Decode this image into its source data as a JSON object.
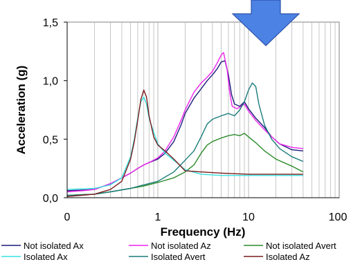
{
  "chart_data": {
    "type": "line",
    "xlabel": "Frequency (Hz)",
    "ylabel": "Acceleration (g)",
    "x_scale": "log",
    "xlim": [
      0.1,
      100
    ],
    "ylim": [
      0,
      1.5
    ],
    "x_tick_labels": [
      "0",
      "1",
      "10",
      "100"
    ],
    "y_tick_labels": [
      "0,0",
      "0,5",
      "1,0",
      "1,5"
    ],
    "grid": "vertical log minor and major gridlines",
    "legend_position": "bottom",
    "annotation": "downward-pointing blue arrow at top right",
    "colors": {
      "arrow_fill": "#4b82e4",
      "arrow_stroke": "#2a4fa8",
      "plot_background": "#ffffff",
      "grid": "#b8b8b8"
    },
    "series": [
      {
        "name": "Not isolated Ax",
        "color": "#1a1a7a",
        "points": [
          [
            0.1,
            0.06
          ],
          [
            0.15,
            0.065
          ],
          [
            0.2,
            0.07
          ],
          [
            0.3,
            0.12
          ],
          [
            0.4,
            0.17
          ],
          [
            0.5,
            0.21
          ],
          [
            0.6,
            0.25
          ],
          [
            0.7,
            0.28
          ],
          [
            0.8,
            0.3
          ],
          [
            1.0,
            0.33
          ],
          [
            1.2,
            0.38
          ],
          [
            1.5,
            0.48
          ],
          [
            1.8,
            0.62
          ],
          [
            2.0,
            0.72
          ],
          [
            2.5,
            0.85
          ],
          [
            3.0,
            0.93
          ],
          [
            3.5,
            1.0
          ],
          [
            4.0,
            1.05
          ],
          [
            4.5,
            1.1
          ],
          [
            5.0,
            1.16
          ],
          [
            5.5,
            1.17
          ],
          [
            6.0,
            1.05
          ],
          [
            6.5,
            0.88
          ],
          [
            7.0,
            0.8
          ],
          [
            8.0,
            0.78
          ],
          [
            9.0,
            0.82
          ],
          [
            10.0,
            0.76
          ],
          [
            12.0,
            0.68
          ],
          [
            15.0,
            0.6
          ],
          [
            18.0,
            0.52
          ],
          [
            22.0,
            0.46
          ],
          [
            30.0,
            0.41
          ],
          [
            40.0,
            0.4
          ]
        ]
      },
      {
        "name": "Not isolated Az",
        "color": "#ee22ee",
        "points": [
          [
            0.1,
            0.05
          ],
          [
            0.15,
            0.06
          ],
          [
            0.2,
            0.07
          ],
          [
            0.3,
            0.12
          ],
          [
            0.4,
            0.17
          ],
          [
            0.5,
            0.21
          ],
          [
            0.6,
            0.25
          ],
          [
            0.7,
            0.28
          ],
          [
            0.8,
            0.3
          ],
          [
            1.0,
            0.34
          ],
          [
            1.2,
            0.4
          ],
          [
            1.5,
            0.52
          ],
          [
            1.8,
            0.66
          ],
          [
            2.0,
            0.75
          ],
          [
            2.5,
            0.9
          ],
          [
            3.0,
            0.98
          ],
          [
            3.5,
            1.03
          ],
          [
            4.0,
            1.08
          ],
          [
            4.5,
            1.15
          ],
          [
            5.0,
            1.22
          ],
          [
            5.3,
            1.24
          ],
          [
            5.8,
            1.1
          ],
          [
            6.2,
            0.9
          ],
          [
            6.6,
            0.78
          ],
          [
            7.5,
            0.76
          ],
          [
            9.0,
            0.8
          ],
          [
            10.0,
            0.74
          ],
          [
            12.0,
            0.66
          ],
          [
            15.0,
            0.58
          ],
          [
            18.0,
            0.52
          ],
          [
            22.0,
            0.46
          ],
          [
            30.0,
            0.43
          ],
          [
            40.0,
            0.42
          ]
        ]
      },
      {
        "name": "Not isolated Avert",
        "color": "#2a8a2a",
        "points": [
          [
            0.1,
            0.02
          ],
          [
            0.2,
            0.03
          ],
          [
            0.3,
            0.05
          ],
          [
            0.5,
            0.08
          ],
          [
            0.7,
            0.1
          ],
          [
            1.0,
            0.13
          ],
          [
            1.5,
            0.17
          ],
          [
            2.0,
            0.22
          ],
          [
            2.5,
            0.28
          ],
          [
            3.0,
            0.38
          ],
          [
            3.5,
            0.45
          ],
          [
            4.0,
            0.48
          ],
          [
            5.0,
            0.51
          ],
          [
            6.0,
            0.53
          ],
          [
            7.0,
            0.54
          ],
          [
            8.0,
            0.53
          ],
          [
            9.0,
            0.55
          ],
          [
            10.0,
            0.52
          ],
          [
            12.0,
            0.47
          ],
          [
            15.0,
            0.4
          ],
          [
            20.0,
            0.33
          ],
          [
            30.0,
            0.27
          ],
          [
            40.0,
            0.22
          ]
        ]
      },
      {
        "name": "Isolated Ax",
        "color": "#33e0e0",
        "points": [
          [
            0.1,
            0.07
          ],
          [
            0.2,
            0.08
          ],
          [
            0.3,
            0.11
          ],
          [
            0.4,
            0.17
          ],
          [
            0.5,
            0.35
          ],
          [
            0.55,
            0.5
          ],
          [
            0.6,
            0.68
          ],
          [
            0.65,
            0.82
          ],
          [
            0.7,
            0.86
          ],
          [
            0.75,
            0.8
          ],
          [
            0.8,
            0.68
          ],
          [
            0.9,
            0.56
          ],
          [
            1.0,
            0.46
          ],
          [
            1.2,
            0.38
          ],
          [
            1.5,
            0.32
          ],
          [
            2.0,
            0.24
          ],
          [
            3.0,
            0.2
          ],
          [
            5.0,
            0.19
          ],
          [
            10.0,
            0.19
          ],
          [
            20.0,
            0.19
          ],
          [
            40.0,
            0.19
          ]
        ]
      },
      {
        "name": "Isolated Avert",
        "color": "#1a7a7a",
        "points": [
          [
            0.1,
            0.02
          ],
          [
            0.2,
            0.03
          ],
          [
            0.3,
            0.05
          ],
          [
            0.5,
            0.08
          ],
          [
            0.7,
            0.11
          ],
          [
            1.0,
            0.14
          ],
          [
            1.5,
            0.22
          ],
          [
            2.0,
            0.32
          ],
          [
            2.5,
            0.4
          ],
          [
            3.0,
            0.52
          ],
          [
            3.5,
            0.63
          ],
          [
            4.0,
            0.67
          ],
          [
            5.0,
            0.7
          ],
          [
            6.0,
            0.72
          ],
          [
            7.0,
            0.7
          ],
          [
            8.0,
            0.75
          ],
          [
            9.0,
            0.82
          ],
          [
            10.0,
            0.92
          ],
          [
            11.0,
            0.98
          ],
          [
            12.0,
            0.95
          ],
          [
            13.0,
            0.8
          ],
          [
            15.0,
            0.62
          ],
          [
            18.0,
            0.5
          ],
          [
            22.0,
            0.42
          ],
          [
            30.0,
            0.35
          ],
          [
            40.0,
            0.31
          ]
        ]
      },
      {
        "name": "Isolated Az",
        "color": "#7a1a1a",
        "points": [
          [
            0.1,
            0.01
          ],
          [
            0.2,
            0.03
          ],
          [
            0.3,
            0.07
          ],
          [
            0.4,
            0.14
          ],
          [
            0.5,
            0.33
          ],
          [
            0.55,
            0.48
          ],
          [
            0.6,
            0.66
          ],
          [
            0.65,
            0.84
          ],
          [
            0.7,
            0.92
          ],
          [
            0.75,
            0.86
          ],
          [
            0.8,
            0.7
          ],
          [
            0.9,
            0.52
          ],
          [
            1.0,
            0.45
          ],
          [
            1.2,
            0.4
          ],
          [
            1.5,
            0.33
          ],
          [
            2.0,
            0.23
          ],
          [
            3.0,
            0.22
          ],
          [
            5.0,
            0.21
          ],
          [
            10.0,
            0.2
          ],
          [
            20.0,
            0.2
          ],
          [
            40.0,
            0.2
          ]
        ]
      }
    ]
  }
}
